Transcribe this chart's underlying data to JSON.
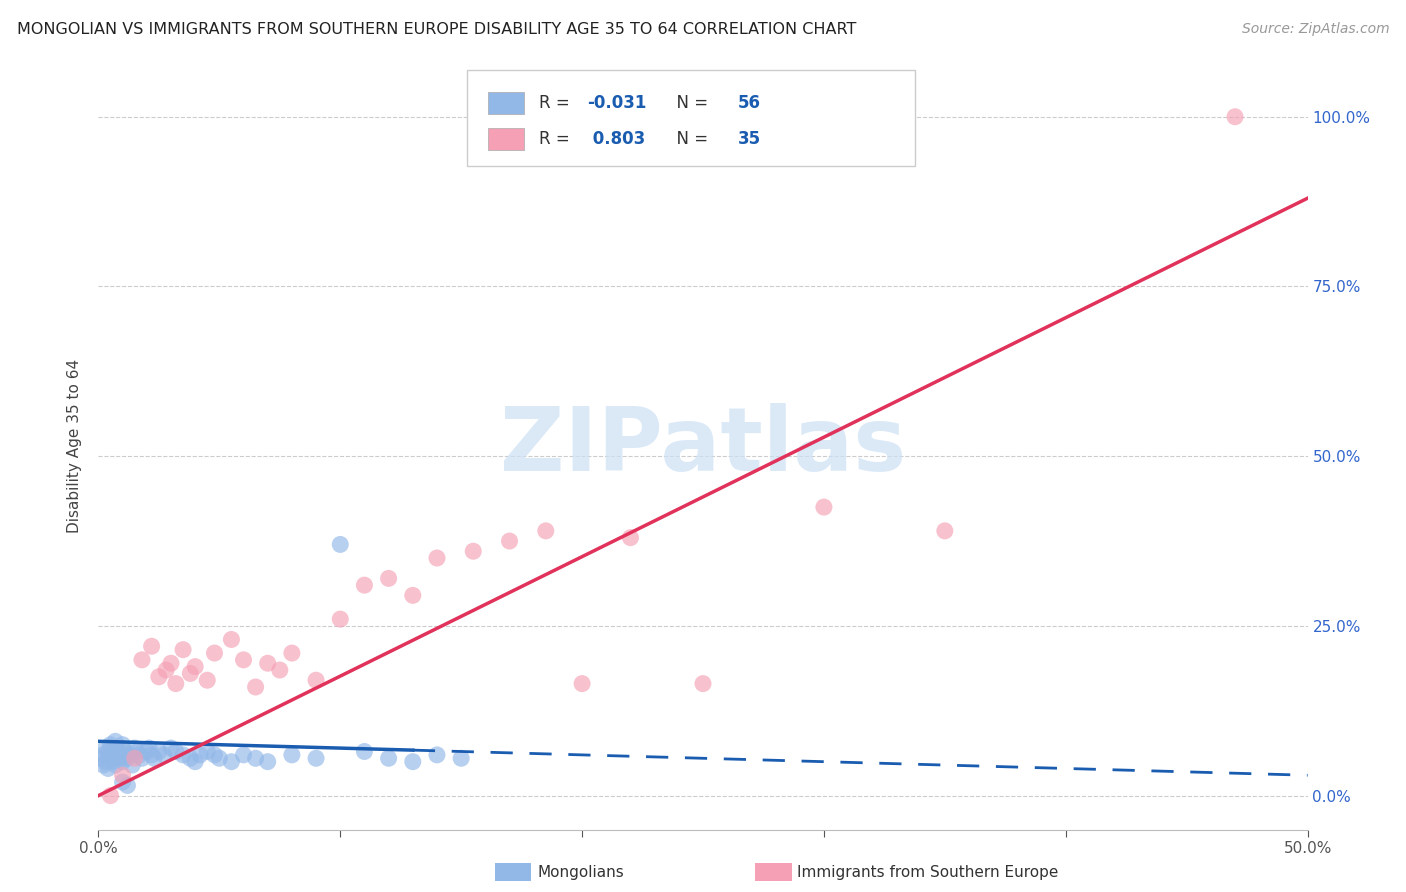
{
  "title": "MONGOLIAN VS IMMIGRANTS FROM SOUTHERN EUROPE DISABILITY AGE 35 TO 64 CORRELATION CHART",
  "source": "Source: ZipAtlas.com",
  "ylabel": "Disability Age 35 to 64",
  "xlim": [
    0.0,
    0.5
  ],
  "ylim": [
    -0.05,
    1.08
  ],
  "xtick_positions": [
    0.0,
    0.1,
    0.2,
    0.3,
    0.4,
    0.5
  ],
  "xtick_labels": [
    "0.0%",
    "",
    "",
    "",
    "",
    "50.0%"
  ],
  "ytick_positions": [
    0.0,
    0.25,
    0.5,
    0.75,
    1.0
  ],
  "ytick_labels_right": [
    "0.0%",
    "25.0%",
    "50.0%",
    "75.0%",
    "100.0%"
  ],
  "mongolian_R": -0.031,
  "mongolian_N": 56,
  "southern_europe_R": 0.803,
  "southern_europe_N": 35,
  "mongolian_color": "#92b8e8",
  "southern_europe_color": "#f5a0b5",
  "mongolian_line_color": "#1a5cb0",
  "southern_europe_line_color": "#e0325a",
  "watermark_text": "ZIPatlas",
  "watermark_color": "#cce0f5",
  "legend_label_mongolian": "Mongolians",
  "legend_label_southern_europe": "Immigrants from Southern Europe",
  "mongo_line_x": [
    0.0,
    0.5
  ],
  "mongo_line_y": [
    0.08,
    0.03
  ],
  "se_line_x": [
    0.0,
    0.5
  ],
  "se_line_y": [
    0.0,
    0.88
  ],
  "mongolian_x": [
    0.001,
    0.002,
    0.002,
    0.003,
    0.003,
    0.004,
    0.004,
    0.005,
    0.005,
    0.006,
    0.006,
    0.007,
    0.007,
    0.008,
    0.008,
    0.009,
    0.009,
    0.01,
    0.01,
    0.011,
    0.012,
    0.013,
    0.014,
    0.015,
    0.016,
    0.017,
    0.018,
    0.02,
    0.021,
    0.022,
    0.023,
    0.025,
    0.027,
    0.03,
    0.032,
    0.035,
    0.038,
    0.04,
    0.042,
    0.045,
    0.048,
    0.05,
    0.055,
    0.06,
    0.065,
    0.07,
    0.08,
    0.09,
    0.1,
    0.11,
    0.12,
    0.13,
    0.14,
    0.15,
    0.01,
    0.012
  ],
  "mongolian_y": [
    0.055,
    0.06,
    0.045,
    0.07,
    0.05,
    0.065,
    0.04,
    0.075,
    0.055,
    0.06,
    0.05,
    0.08,
    0.045,
    0.065,
    0.07,
    0.055,
    0.06,
    0.075,
    0.05,
    0.065,
    0.055,
    0.06,
    0.045,
    0.07,
    0.065,
    0.06,
    0.055,
    0.065,
    0.07,
    0.06,
    0.055,
    0.065,
    0.06,
    0.07,
    0.065,
    0.06,
    0.055,
    0.05,
    0.06,
    0.065,
    0.06,
    0.055,
    0.05,
    0.06,
    0.055,
    0.05,
    0.06,
    0.055,
    0.37,
    0.065,
    0.055,
    0.05,
    0.06,
    0.055,
    0.02,
    0.015
  ],
  "southern_europe_x": [
    0.005,
    0.01,
    0.015,
    0.018,
    0.022,
    0.025,
    0.028,
    0.03,
    0.032,
    0.035,
    0.038,
    0.04,
    0.045,
    0.048,
    0.055,
    0.06,
    0.065,
    0.07,
    0.075,
    0.08,
    0.09,
    0.1,
    0.11,
    0.12,
    0.13,
    0.14,
    0.155,
    0.17,
    0.185,
    0.2,
    0.22,
    0.25,
    0.3,
    0.35,
    0.47
  ],
  "southern_europe_y": [
    0.0,
    0.03,
    0.055,
    0.2,
    0.22,
    0.175,
    0.185,
    0.195,
    0.165,
    0.215,
    0.18,
    0.19,
    0.17,
    0.21,
    0.23,
    0.2,
    0.16,
    0.195,
    0.185,
    0.21,
    0.17,
    0.26,
    0.31,
    0.32,
    0.295,
    0.35,
    0.36,
    0.375,
    0.39,
    0.165,
    0.38,
    0.165,
    0.425,
    0.39,
    1.0
  ]
}
